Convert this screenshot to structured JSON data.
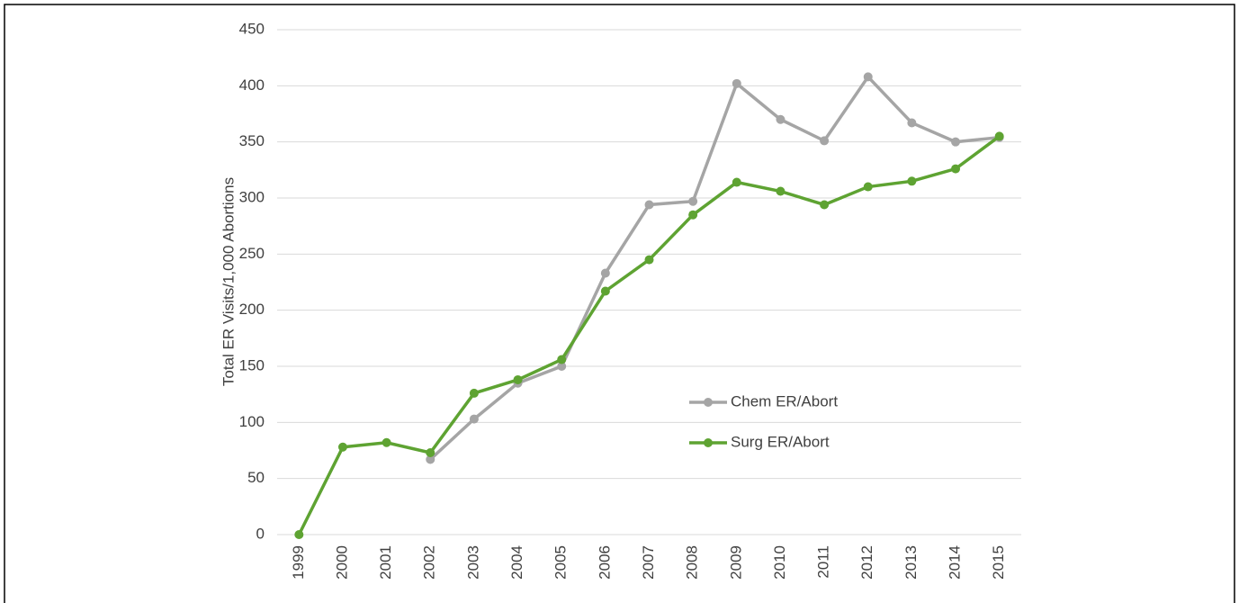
{
  "chart_data": {
    "type": "line",
    "y_label": "Total ER Visits/1,000 Abortions",
    "x": [
      "1999",
      "2000",
      "2001",
      "2002",
      "2003",
      "2004",
      "2005",
      "2006",
      "2007",
      "2008",
      "2009",
      "2010",
      "2011",
      "2012",
      "2013",
      "2014",
      "2015"
    ],
    "series": [
      {
        "name": "Chem ER/Abort",
        "color": "#a5a5a5",
        "values": [
          null,
          null,
          null,
          67,
          103,
          135,
          150,
          233,
          294,
          297,
          402,
          370,
          351,
          408,
          367,
          350,
          354
        ]
      },
      {
        "name": "Surg ER/Abort",
        "color": "#5ea332",
        "values": [
          0,
          78,
          82,
          73,
          126,
          138,
          156,
          217,
          245,
          285,
          314,
          306,
          294,
          310,
          315,
          326,
          355
        ]
      }
    ],
    "ylim": [
      0,
      450
    ],
    "yticks": [
      0,
      50,
      100,
      150,
      200,
      250,
      300,
      350,
      400,
      450
    ],
    "grid": true,
    "legend": "inside"
  }
}
